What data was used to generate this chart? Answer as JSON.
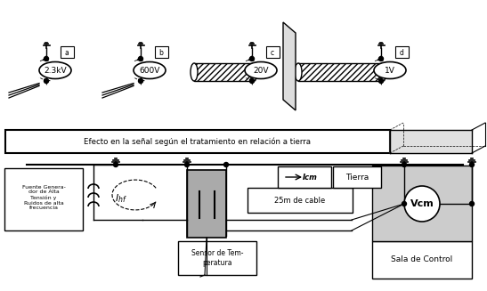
{
  "bg_color": "#ffffff",
  "title_box_text": "Efecto en la señal según el tratamiento en relación a tierra",
  "box1_text": "Fuente Genera-\ndor de Alta\nTensión y\nRuidos de alta\nfrecuencia",
  "box2_text": "Sensor de Tem-\nperatura",
  "box3_text": "25m de cable",
  "box4_text": "Sala de Control",
  "box5_text": "Tierra",
  "label_Ihf": "$I_{hf}$",
  "label_Icm": "Icm",
  "label_Vcm": "Vcm",
  "label_23kV": "2.3kV",
  "label_600V": "600V",
  "label_20V": "20V",
  "label_1V": "1V",
  "label_a": "a",
  "label_b": "b",
  "label_c": "c",
  "label_d": "d"
}
